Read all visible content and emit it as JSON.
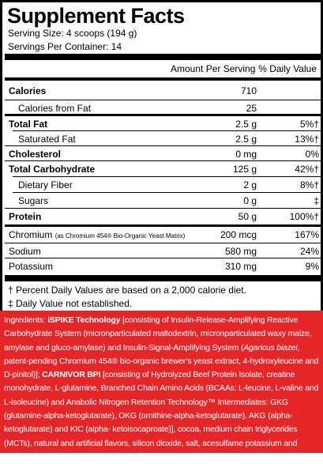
{
  "title": "Supplement Facts",
  "serving_size": "Serving Size: 4 scoops (194 g)",
  "servings_per_container": "Servings Per Container: 14",
  "header": {
    "amount": "Amount Per Serving",
    "dv": "% Daily Value"
  },
  "rows": [
    {
      "name": "Calories",
      "amount": "710",
      "dv": ""
    },
    {
      "name": "Calories from Fat",
      "amount": "25",
      "dv": ""
    },
    {
      "name": "Total Fat",
      "amount": "2.5 g",
      "dv": "5%†"
    },
    {
      "name": "Saturated Fat",
      "amount": "2.5 g",
      "dv": "13%†"
    },
    {
      "name": "Cholesterol",
      "amount": "0 mg",
      "dv": "0%"
    },
    {
      "name": "Total Carbohydrate",
      "amount": "125 g",
      "dv": "42%†"
    },
    {
      "name": "Dietary Fiber",
      "amount": "2 g",
      "dv": "8%†"
    },
    {
      "name": "Sugars",
      "amount": "0 g",
      "dv": "‡"
    },
    {
      "name": "Protein",
      "amount": "50 g",
      "dv": "100%†"
    },
    {
      "name": "Chromium",
      "note": "(as Chromium 454® Bio-Organic Yeast Matrix)",
      "amount": "200 mcg",
      "dv": "167%"
    },
    {
      "name": "Sodium",
      "amount": "580 mg",
      "dv": "24%"
    },
    {
      "name": "Potassium",
      "amount": "310 mg",
      "dv": "9%"
    }
  ],
  "footnotes": [
    "† Percent Daily Values are based on a 2,000 calorie diet.",
    "‡ Daily Value not established."
  ],
  "ingredients": {
    "label": "Ingredients: ",
    "ispike_name": "iSPIKE Technology",
    "part1": " [consisting of Insulin-Release-Amplifying Reactive Carbohydrate System (micronparticulated maltodextrin, micronparticulated waxy maize, amylase and gluco-amylase) and Insulin-Signal-Amplifying System (",
    "agaricus": "Agaricus biazei",
    "part2": ", patent-pending Chromium 454® bio-organic brewer’s yeast extract, 4-hydroxyleucine and D-pinitol)]; ",
    "carnivor_name": "CARNIVOR BPI",
    "part3": " [consisting of Hydrolyzed Beef Protein Isolate, creatine monohydrate, L-glutamine, Branched Chain Amino Acids (BCAAs: L-leucine, L-valine and L-isoleucine) and Anabolic Nitrogen Retention Technology™ Intermediates: GKG (glutamine-alpha-ketoglutarate), OKG (ornithine-alpha-ketoglutarate), AKG (alpha-ketoglutarate) and KIC (alpha- ketoisocaproate)], cocoa, medium chain triglycerides (MCTs), natural and artificial flavors, silicon dioxide, salt, acesulfame potassium and sucralose."
  }
}
